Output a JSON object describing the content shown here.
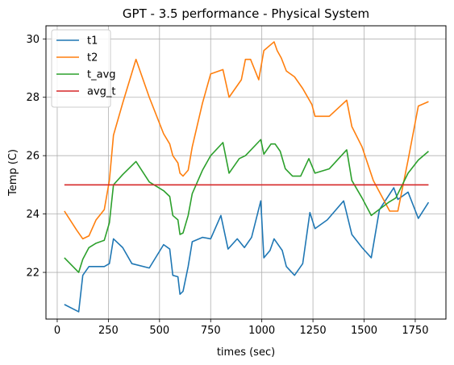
{
  "chart_data": {
    "type": "line",
    "title": "GPT - 3.5 performance - Physical System",
    "xlabel": "times (sec)",
    "ylabel": "Temp (C)",
    "xlim": [
      -55,
      1900
    ],
    "ylim": [
      20.4,
      30.45
    ],
    "xticks": [
      0,
      250,
      500,
      750,
      1000,
      1250,
      1500,
      1750
    ],
    "yticks": [
      22,
      24,
      26,
      28,
      30
    ],
    "grid": true,
    "legend_position": "top-left",
    "series": [
      {
        "name": "t1",
        "color": "#1f77b4",
        "x": [
          35,
          105,
          125,
          155,
          190,
          230,
          255,
          275,
          320,
          365,
          450,
          520,
          550,
          565,
          590,
          600,
          615,
          640,
          660,
          710,
          750,
          800,
          835,
          880,
          915,
          950,
          995,
          1010,
          1040,
          1060,
          1100,
          1120,
          1160,
          1200,
          1235,
          1260,
          1320,
          1400,
          1440,
          1490,
          1535,
          1575,
          1645,
          1665,
          1715,
          1765,
          1815
        ],
        "y": [
          20.9,
          20.65,
          21.9,
          22.2,
          22.2,
          22.2,
          22.3,
          23.15,
          22.85,
          22.3,
          22.15,
          22.95,
          22.8,
          21.9,
          21.85,
          21.25,
          21.35,
          22.2,
          23.05,
          23.2,
          23.15,
          23.95,
          22.8,
          23.15,
          22.85,
          23.2,
          24.45,
          22.5,
          22.75,
          23.15,
          22.75,
          22.2,
          21.9,
          22.3,
          24.05,
          23.5,
          23.8,
          24.45,
          23.3,
          22.85,
          22.5,
          24.15,
          24.9,
          24.5,
          24.75,
          23.85,
          24.4
        ]
      },
      {
        "name": "t2",
        "color": "#ff7f0e",
        "x": [
          35,
          95,
          125,
          155,
          190,
          230,
          255,
          275,
          320,
          385,
          450,
          520,
          550,
          565,
          590,
          600,
          615,
          640,
          660,
          710,
          750,
          810,
          840,
          900,
          920,
          945,
          985,
          1010,
          1060,
          1075,
          1095,
          1120,
          1160,
          1200,
          1245,
          1260,
          1330,
          1415,
          1440,
          1490,
          1545,
          1625,
          1665,
          1715,
          1765,
          1815
        ],
        "y": [
          24.1,
          23.45,
          23.15,
          23.25,
          23.8,
          24.15,
          25.15,
          26.7,
          27.8,
          29.3,
          28.0,
          26.75,
          26.4,
          26.0,
          25.75,
          25.4,
          25.3,
          25.5,
          26.3,
          27.8,
          28.8,
          28.95,
          28.0,
          28.6,
          29.3,
          29.3,
          28.6,
          29.6,
          29.9,
          29.6,
          29.35,
          28.9,
          28.7,
          28.3,
          27.75,
          27.35,
          27.35,
          27.9,
          27.0,
          26.3,
          25.15,
          24.1,
          24.1,
          25.85,
          27.7,
          27.85
        ]
      },
      {
        "name": "t_avg",
        "color": "#2ca02c",
        "x": [
          35,
          105,
          125,
          155,
          190,
          230,
          255,
          275,
          320,
          385,
          450,
          520,
          550,
          565,
          590,
          600,
          615,
          640,
          660,
          710,
          750,
          810,
          840,
          890,
          920,
          995,
          1010,
          1045,
          1065,
          1090,
          1115,
          1150,
          1190,
          1230,
          1260,
          1330,
          1415,
          1440,
          1490,
          1535,
          1620,
          1655,
          1715,
          1765,
          1815
        ],
        "y": [
          22.5,
          22.0,
          22.45,
          22.85,
          23.0,
          23.1,
          23.7,
          25.0,
          25.35,
          25.8,
          25.1,
          24.8,
          24.6,
          23.95,
          23.8,
          23.3,
          23.35,
          23.95,
          24.7,
          25.5,
          26.0,
          26.45,
          25.4,
          25.9,
          26.0,
          26.55,
          26.05,
          26.4,
          26.4,
          26.15,
          25.55,
          25.3,
          25.3,
          25.9,
          25.4,
          25.55,
          26.2,
          25.15,
          24.55,
          23.95,
          24.4,
          24.55,
          25.4,
          25.85,
          26.15
        ]
      },
      {
        "name": "avg_t",
        "color": "#d62728",
        "x": [
          35,
          1815
        ],
        "y": [
          25.0,
          25.0
        ]
      }
    ]
  }
}
